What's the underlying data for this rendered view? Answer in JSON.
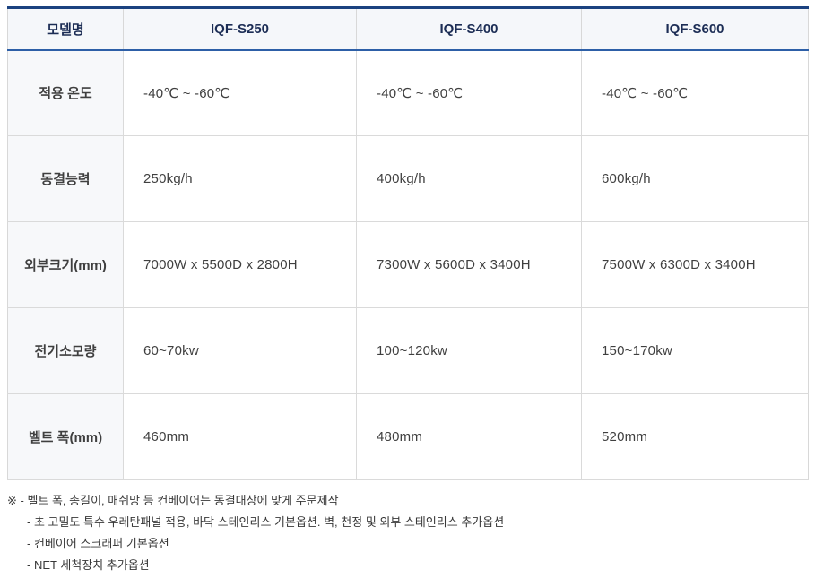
{
  "table": {
    "header": {
      "model_label": "모델명",
      "models": [
        "IQF-S250",
        "IQF-S400",
        "IQF-S600"
      ]
    },
    "rows": [
      {
        "label": "적용 온도",
        "values": [
          "-40℃ ~ -60℃",
          "-40℃ ~ -60℃",
          "-40℃ ~ -60℃"
        ]
      },
      {
        "label": "동결능력",
        "values": [
          "250kg/h",
          "400kg/h",
          "600kg/h"
        ]
      },
      {
        "label": "외부크기(mm)",
        "values": [
          "7000W x 5500D x 2800H",
          "7300W x 5600D x 3400H",
          "7500W x 6300D x 3400H"
        ]
      },
      {
        "label": "전기소모량",
        "values": [
          "60~70kw",
          "100~120kw",
          "150~170kw"
        ]
      },
      {
        "label": "벨트 폭(mm)",
        "values": [
          "460mm",
          "480mm",
          "520mm"
        ]
      }
    ]
  },
  "notes": {
    "lines": [
      "※ - 벨트 폭, 총길이, 매쉬망 등 컨베이어는 동결대상에 맞게 주문제작",
      "- 초 고밀도 특수 우레탄패널 적용, 바닥 스테인리스 기본옵션. 벽, 천정 및 외부 스테인리스 추가옵션",
      "- 컨베이어 스크래퍼 기본옵션",
      "- NET 세척장치 추가옵션"
    ]
  },
  "colors": {
    "table_top_border": "#1b4280",
    "header_underline": "#2d5fa7",
    "cell_border": "#dadada",
    "header_bg": "#f5f7fa",
    "label_bg": "#f7f8fa",
    "header_text": "#1c2d55",
    "body_text": "#3f3f3f"
  }
}
